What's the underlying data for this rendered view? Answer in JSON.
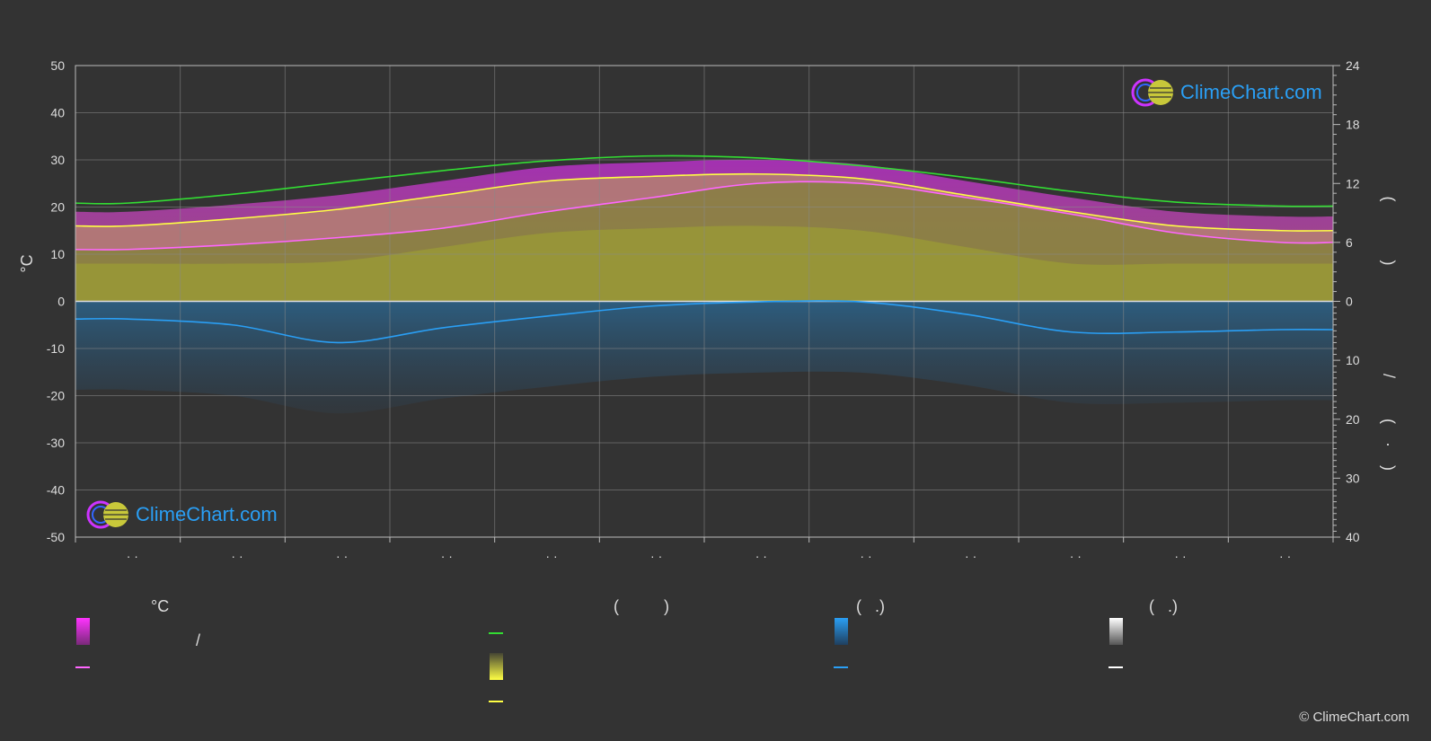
{
  "chart_data": {
    "type": "area",
    "left_axis": {
      "label": "°C",
      "ticks": [
        50,
        40,
        30,
        20,
        10,
        0,
        -10,
        -20,
        -30,
        -40,
        -50
      ],
      "ylim": [
        -50,
        50
      ]
    },
    "right_axis_upper": {
      "label": "(   )",
      "ticks": [
        24,
        18,
        12,
        6,
        0
      ],
      "ylim": [
        0,
        24
      ]
    },
    "right_axis_lower": {
      "label": "/   (·)",
      "ticks": [
        0,
        10,
        20,
        30,
        40
      ],
      "ylim": [
        0,
        40
      ]
    },
    "month_tick_labels": [
      "· ·",
      "· ·",
      "· ·",
      "· ·",
      "· ·",
      "· ·",
      "· ·",
      "· ·",
      "· ·",
      "· ·",
      "· ·",
      "· ·"
    ],
    "series": [
      {
        "name": "",
        "color": "#33dd33",
        "axis": "right_upper",
        "values": [
          10.0,
          10.9,
          12.1,
          13.3,
          14.3,
          14.8,
          14.6,
          13.8,
          12.6,
          11.2,
          10.1,
          9.7
        ]
      },
      {
        "name": "",
        "color": "#ffff44",
        "axis": "left",
        "values": [
          16,
          17.5,
          19.5,
          22.5,
          25.5,
          26.5,
          27,
          26,
          22.5,
          19,
          16,
          15
        ]
      },
      {
        "name": "",
        "color": "#ff66ff",
        "axis": "left",
        "values": [
          11,
          12,
          13.5,
          15.5,
          19,
          22,
          25,
          25,
          22,
          18.5,
          14.5,
          12.5
        ]
      },
      {
        "name": "",
        "color": "#2a9ff5",
        "axis": "right_lower",
        "values": [
          3,
          4,
          7,
          4.5,
          2.5,
          0.8,
          0.1,
          0.1,
          2.2,
          5.2,
          5.2,
          4.8
        ]
      }
    ],
    "grid": true
  },
  "legend": {
    "col1_heading": "°C",
    "col1_row1_text": "/",
    "col2_heading": "(          )",
    "col3_heading": "(   .)",
    "col4_heading": "(   .)"
  },
  "colors": {
    "background": "#333333",
    "magenta": "#ff33ff",
    "pink": "#ff66ff",
    "green": "#33dd33",
    "yellow": "#ffff44",
    "olive": "#b5b537",
    "blue": "#2a9ff5",
    "white": "#ffffff"
  },
  "logo": {
    "text": "ClimeChart.com"
  },
  "copyright": "© ClimeChart.com"
}
